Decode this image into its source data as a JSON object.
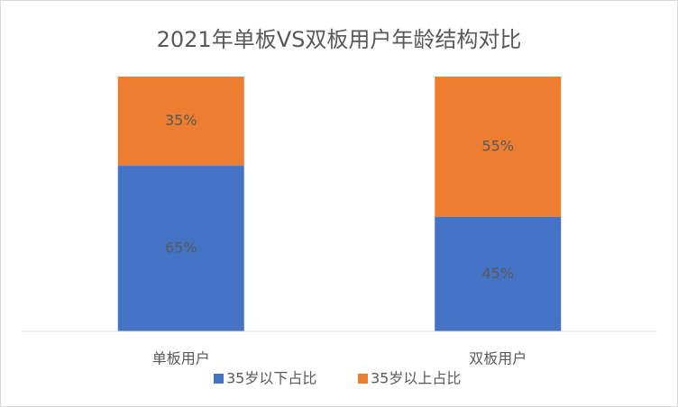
{
  "chart_data": {
    "type": "stacked-bar",
    "title": "2021年单板VS双板用户年龄结构对比",
    "categories": [
      "单板用户",
      "双板用户"
    ],
    "series": [
      {
        "name": "35岁以下占比",
        "color": "#4472c4",
        "values": [
          65,
          45
        ],
        "value_labels": [
          "65%",
          "45%"
        ]
      },
      {
        "name": "35岁以上占比",
        "color": "#ed7d31",
        "values": [
          35,
          55
        ],
        "value_labels": [
          "35%",
          "55%"
        ]
      }
    ],
    "ylim": [
      0,
      100
    ],
    "legend": "bottom"
  }
}
